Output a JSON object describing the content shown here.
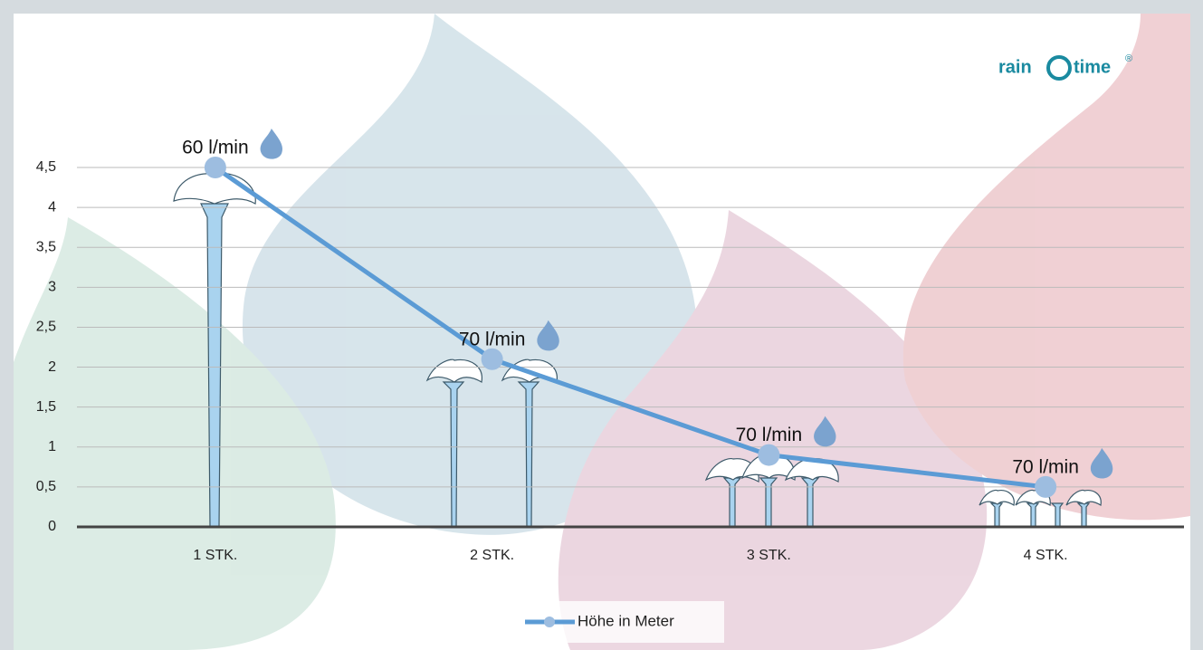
{
  "logo": {
    "word1": "rain",
    "word2": "time",
    "mark": "®"
  },
  "chart_data": {
    "type": "line",
    "categories": [
      "1 STK.",
      "2 STK.",
      "3 STK.",
      "4 STK."
    ],
    "series": [
      {
        "name": "Höhe in Meter",
        "color": "#5b9bd5",
        "values": [
          4.5,
          2.1,
          0.9,
          0.5
        ]
      }
    ],
    "annotations": [
      "60 l/min",
      "70 l/min",
      "70 l/min",
      "70 l/min"
    ],
    "ylim": [
      0,
      4.5
    ],
    "yticks": [
      0,
      {
        "value": 0.5,
        "label": "0,5"
      },
      1,
      {
        "value": 1.5,
        "label": "1,5"
      },
      2,
      {
        "value": 2.5,
        "label": "2,5"
      },
      3,
      {
        "value": 3.5,
        "label": "3,5"
      },
      4,
      {
        "value": 4.5,
        "label": "4,5"
      }
    ],
    "grid": true
  }
}
